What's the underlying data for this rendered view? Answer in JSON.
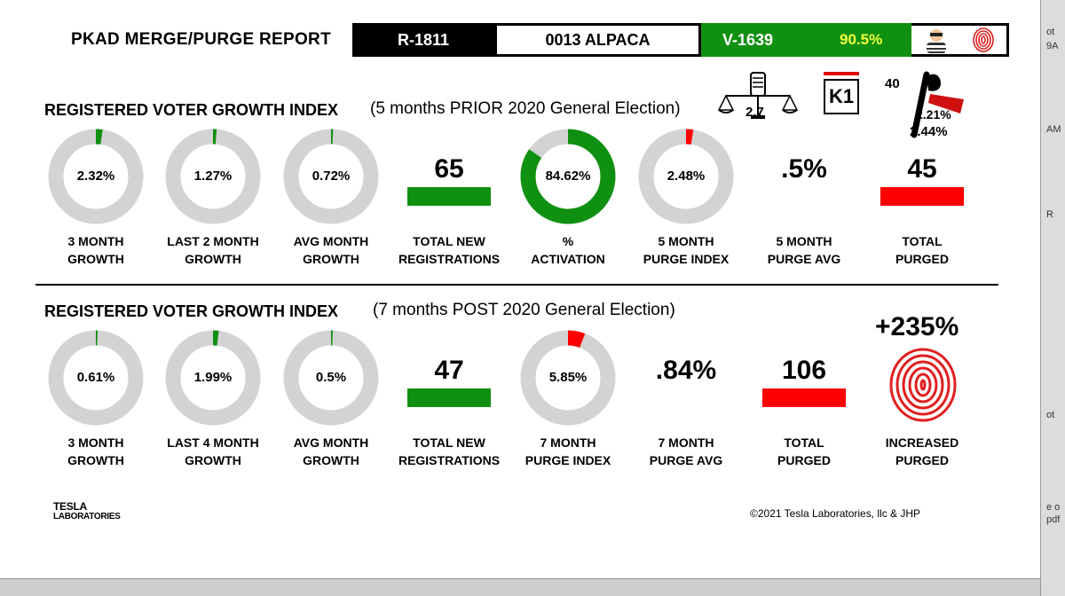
{
  "header": {
    "title": "PKAD MERGE/PURGE REPORT",
    "r_code": "R-1811",
    "county": "0013 ALPACA",
    "v_code": "V-1639",
    "v_pct": "90.5%"
  },
  "section_prior": {
    "title": "REGISTERED VOTER GROWTH INDEX",
    "subtitle": "(5 months PRIOR 2020 General Election)",
    "scale_value": "2.7",
    "k1_label": "K1",
    "flag_count": "40",
    "flag_pct_1": "2.21%",
    "flag_pct_2": "2.44%",
    "metrics": [
      {
        "value": "2.32%",
        "fraction": 0.0232,
        "line1": "3 MONTH",
        "line2": "GROWTH",
        "color": "#109010"
      },
      {
        "value": "1.27%",
        "fraction": 0.0127,
        "line1": "LAST 2 MONTH",
        "line2": "GROWTH",
        "color": "#109010"
      },
      {
        "value": "0.72%",
        "fraction": 0.0072,
        "line1": "AVG MONTH",
        "line2": "GROWTH",
        "color": "#109010"
      },
      {
        "value": "65",
        "line1": "TOTAL NEW",
        "line2": "REGISTRATIONS"
      },
      {
        "value": "84.62%",
        "fraction": 0.8462,
        "line1": "%",
        "line2": "ACTIVATION",
        "color": "#109010"
      },
      {
        "value": "2.48%",
        "fraction": 0.0248,
        "line1": "5 MONTH",
        "line2": "PURGE INDEX",
        "color": "#ff0000"
      },
      {
        "value": ".5%",
        "line1": "5 MONTH",
        "line2": "PURGE AVG"
      },
      {
        "value": "45",
        "line1": "TOTAL",
        "line2": "PURGED"
      }
    ]
  },
  "section_post": {
    "title": "REGISTERED VOTER GROWTH INDEX",
    "subtitle": "(7 months POST 2020 General Election)",
    "increase": "+235%",
    "metrics": [
      {
        "value": "0.61%",
        "fraction": 0.0061,
        "line1": "3 MONTH",
        "line2": "GROWTH",
        "color": "#109010"
      },
      {
        "value": "1.99%",
        "fraction": 0.0199,
        "line1": "LAST 4 MONTH",
        "line2": "GROWTH",
        "color": "#109010"
      },
      {
        "value": "0.5%",
        "fraction": 0.005,
        "line1": "AVG MONTH",
        "line2": "GROWTH",
        "color": "#109010"
      },
      {
        "value": "47",
        "line1": "TOTAL NEW",
        "line2": "REGISTRATIONS"
      },
      {
        "value": "5.85%",
        "fraction": 0.0585,
        "line1": "7 MONTH",
        "line2": "PURGE INDEX",
        "color": "#ff0000"
      },
      {
        "value": ".84%",
        "line1": "7 MONTH",
        "line2": "PURGE AVG"
      },
      {
        "value": "106",
        "line1": "TOTAL",
        "line2": "PURGED"
      },
      {
        "line1": "INCREASED",
        "line2": "PURGED"
      }
    ]
  },
  "footer": {
    "logo_line1": "TESLA",
    "logo_line2": "LABORATORIES",
    "credit": "©2021 Tesla Laboratories, llc & JHP"
  },
  "side_tabs": [
    "ot",
    "9A",
    "AM",
    "R",
    "ot",
    "e o",
    "pdf"
  ]
}
